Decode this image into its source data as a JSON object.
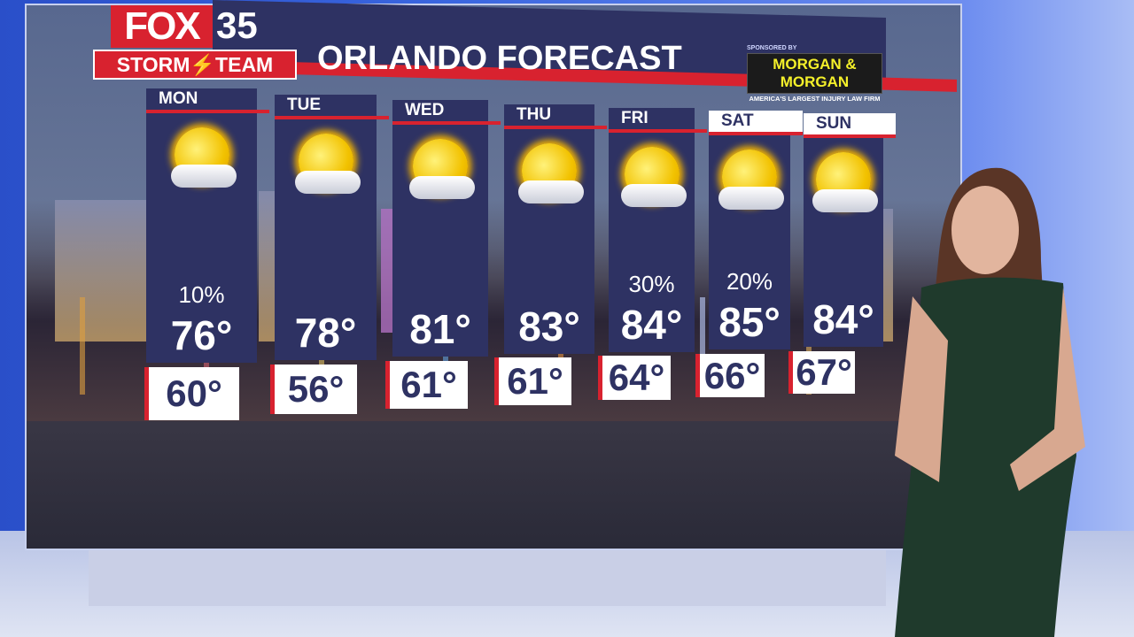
{
  "branding": {
    "logo_fox": "FOX",
    "logo_number": "35",
    "logo_team": "STORM⚡TEAM"
  },
  "title": "ORLANDO FORECAST",
  "sponsor": {
    "label": "SPONSORED BY",
    "name": "MORGAN & MORGAN",
    "tagline": "AMERICA'S LARGEST INJURY LAW FIRM"
  },
  "colors": {
    "panel": "#2e3263",
    "accent": "#d8222f",
    "sponsor_text": "#f4f02a"
  },
  "forecast": [
    {
      "day": "MON",
      "icon": "mostly-sunny-icon",
      "precip": "10%",
      "high": "76°",
      "low": "60°",
      "weekend": false
    },
    {
      "day": "TUE",
      "icon": "partly-cloudy-icon",
      "precip": "",
      "high": "78°",
      "low": "56°",
      "weekend": false
    },
    {
      "day": "WED",
      "icon": "mostly-sunny-icon",
      "precip": "",
      "high": "81°",
      "low": "61°",
      "weekend": false
    },
    {
      "day": "THU",
      "icon": "mostly-sunny-icon",
      "precip": "",
      "high": "83°",
      "low": "61°",
      "weekend": false
    },
    {
      "day": "FRI",
      "icon": "partly-cloudy-icon",
      "precip": "30%",
      "high": "84°",
      "low": "64°",
      "weekend": false
    },
    {
      "day": "SAT",
      "icon": "partly-cloudy-icon",
      "precip": "20%",
      "high": "85°",
      "low": "66°",
      "weekend": true
    },
    {
      "day": "SUN",
      "icon": "mostly-sunny-icon",
      "precip": "",
      "high": "84°",
      "low": "67°",
      "weekend": true
    }
  ]
}
